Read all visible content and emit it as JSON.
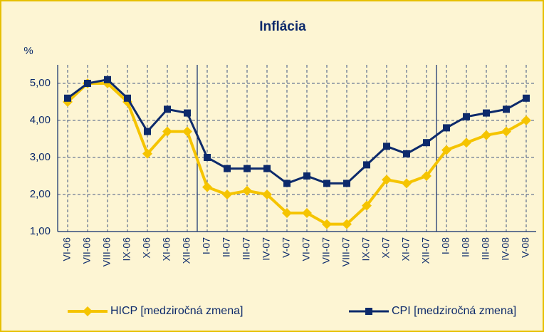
{
  "chart_data": {
    "type": "line",
    "title": "Inflácia",
    "y_label": "%",
    "categories": [
      "VI-06",
      "VII-06",
      "VIII-06",
      "IX-06",
      "X-06",
      "XI-06",
      "XII-06",
      "I-07",
      "II-07",
      "III-07",
      "IV-07",
      "V-07",
      "VI-07",
      "VII-07",
      "VIII-07",
      "IX-07",
      "X-07",
      "XI-07",
      "XII-07",
      "I-08",
      "II-08",
      "III-08",
      "IV-08",
      "V-08"
    ],
    "series": [
      {
        "name": "HICP [medziročná zmena]",
        "color": "#f5c400",
        "marker": "diamond",
        "values": [
          4.5,
          5.0,
          5.0,
          4.5,
          3.1,
          3.7,
          3.7,
          2.2,
          2.0,
          2.1,
          2.0,
          1.5,
          1.5,
          1.2,
          1.2,
          1.7,
          2.4,
          2.3,
          2.5,
          3.2,
          3.4,
          3.6,
          3.7,
          4.0
        ]
      },
      {
        "name": "CPI [medziročná zmena]",
        "color": "#0d2a6b",
        "marker": "square",
        "values": [
          4.6,
          5.0,
          5.1,
          4.6,
          3.7,
          4.3,
          4.2,
          3.0,
          2.7,
          2.7,
          2.7,
          2.3,
          2.5,
          2.3,
          2.3,
          2.8,
          3.3,
          3.1,
          3.4,
          3.8,
          4.1,
          4.2,
          4.3,
          4.6
        ]
      }
    ],
    "ylim": [
      1,
      5.5
    ],
    "yticks": [
      {
        "value": 1,
        "label": "1,00"
      },
      {
        "value": 2,
        "label": "2,00"
      },
      {
        "value": 3,
        "label": "3,00"
      },
      {
        "value": 4,
        "label": "4,00"
      },
      {
        "value": 5,
        "label": "5,00"
      }
    ],
    "grid": true
  }
}
